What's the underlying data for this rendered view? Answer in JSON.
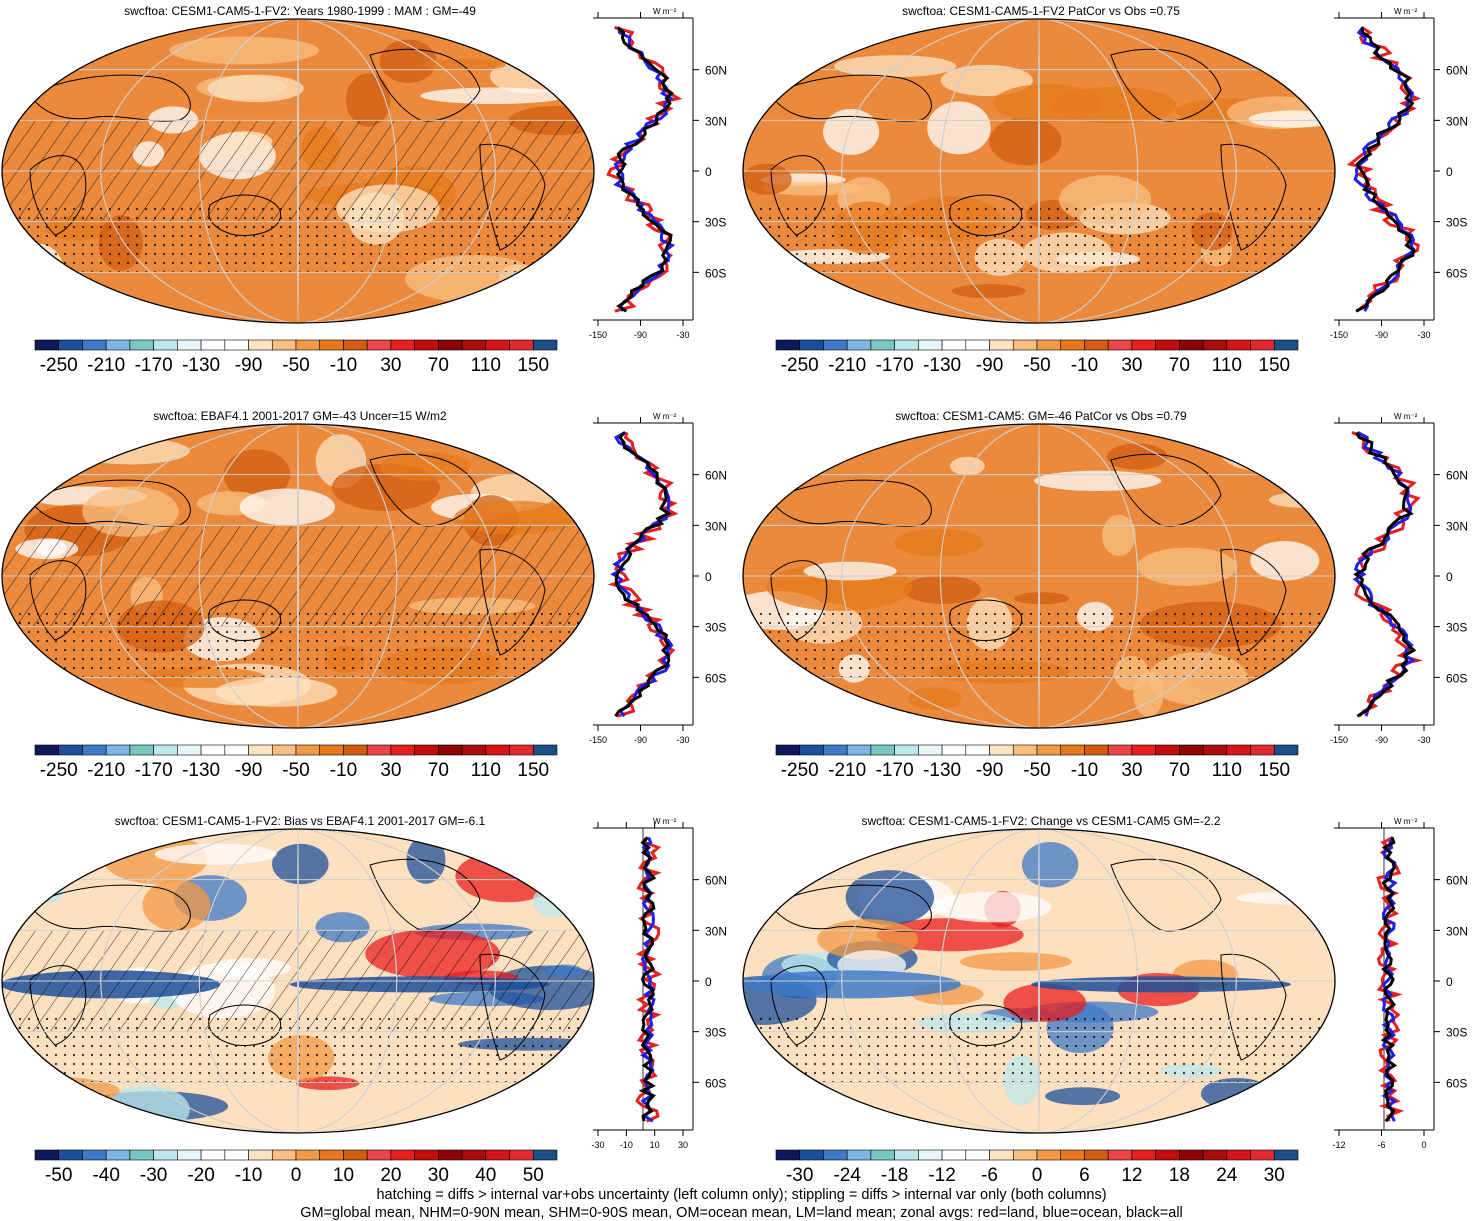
{
  "panels": [
    {
      "title": "swcftoa: CESM1-CAM5-1-FV2: Years 1980-1999 : MAM : GM=-49",
      "cbar_labels": [
        "-250",
        "-210",
        "-170",
        "-130",
        "-90",
        "-50",
        "-10",
        "30",
        "70",
        "110",
        "150"
      ],
      "zonal_ticks": [
        "-150",
        "-90",
        "-30"
      ],
      "lat_ticks": [
        "60N",
        "30N",
        "0",
        "30S",
        "60S"
      ],
      "zonal_unit": "W m⁻²",
      "style": "mean",
      "hatch": true
    },
    {
      "title": "swcftoa: CESM1-CAM5-1-FV2 PatCor vs Obs =0.75",
      "cbar_labels": [
        "-250",
        "-210",
        "-170",
        "-130",
        "-90",
        "-50",
        "-10",
        "30",
        "70",
        "110",
        "150"
      ],
      "zonal_ticks": [
        "-150",
        "-90",
        "-30"
      ],
      "lat_ticks": [
        "60N",
        "30N",
        "0",
        "30S",
        "60S"
      ],
      "zonal_unit": "W m⁻²",
      "style": "mean",
      "hatch": false
    },
    {
      "title": "swcftoa: EBAF4.1 2001-2017 GM=-43 Uncer=15 W/m2",
      "cbar_labels": [
        "-250",
        "-210",
        "-170",
        "-130",
        "-90",
        "-50",
        "-10",
        "30",
        "70",
        "110",
        "150"
      ],
      "zonal_ticks": [
        "-150",
        "-90",
        "-30"
      ],
      "lat_ticks": [
        "60N",
        "30N",
        "0",
        "30S",
        "60S"
      ],
      "zonal_unit": "W m⁻²",
      "style": "mean",
      "hatch": true
    },
    {
      "title": "swcftoa: CESM1-CAM5: GM=-46 PatCor vs Obs =0.79",
      "cbar_labels": [
        "-250",
        "-210",
        "-170",
        "-130",
        "-90",
        "-50",
        "-10",
        "30",
        "70",
        "110",
        "150"
      ],
      "zonal_ticks": [
        "-150",
        "-90",
        "-30"
      ],
      "lat_ticks": [
        "60N",
        "30N",
        "0",
        "30S",
        "60S"
      ],
      "zonal_unit": "W m⁻²",
      "style": "mean",
      "hatch": false
    },
    {
      "title": "swcftoa: CESM1-CAM5-1-FV2: Bias vs EBAF4.1 2001-2017 GM=-6.1",
      "cbar_labels": [
        "-50",
        "-40",
        "-30",
        "-20",
        "-10",
        "0",
        "10",
        "20",
        "30",
        "40",
        "50"
      ],
      "zonal_ticks": [
        "-30",
        "-10",
        "10",
        "30"
      ],
      "lat_ticks": [
        "60N",
        "30N",
        "0",
        "30S",
        "60S"
      ],
      "zonal_unit": "W m⁻²",
      "style": "diff",
      "hatch": true
    },
    {
      "title": "swcftoa: CESM1-CAM5-1-FV2: Change vs CESM1-CAM5 GM=-2.2",
      "cbar_labels": [
        "-30",
        "-24",
        "-18",
        "-12",
        "-6",
        "0",
        "6",
        "12",
        "18",
        "24",
        "30"
      ],
      "zonal_ticks": [
        "-12",
        "-6",
        "0"
      ],
      "lat_ticks": [
        "60N",
        "30N",
        "0",
        "30S",
        "60S"
      ],
      "zonal_unit": "W m⁻²",
      "style": "diff",
      "hatch": false
    }
  ],
  "colorbar_colors": [
    "#0c1a5c",
    "#1c4f9a",
    "#3e7ac7",
    "#7eb6e4",
    "#78c7c0",
    "#bce8ec",
    "#e6f6f9",
    "#ffffff",
    "#ffffff",
    "#fde3c2",
    "#f9bf82",
    "#f29a45",
    "#e7791c",
    "#d25c10",
    "#e9454a",
    "#e81f1f",
    "#c40c0c",
    "#8c0404",
    "#a80c0c",
    "#d8141b",
    "#e02a30",
    "#1d4e8a"
  ],
  "footer": [
    "hatching = diffs > internal var+obs uncertainty (left column only); stippling = diffs > internal var only (both columns)",
    "GM=global mean, NHM=0-90N mean, SHM=0-90S mean, OM=ocean mean, LM=land mean; zonal avgs: red=land, blue=ocean, black=all"
  ],
  "colors": {
    "land": "#e81f1f",
    "ocean": "#1f1fe8",
    "all": "#000000"
  }
}
